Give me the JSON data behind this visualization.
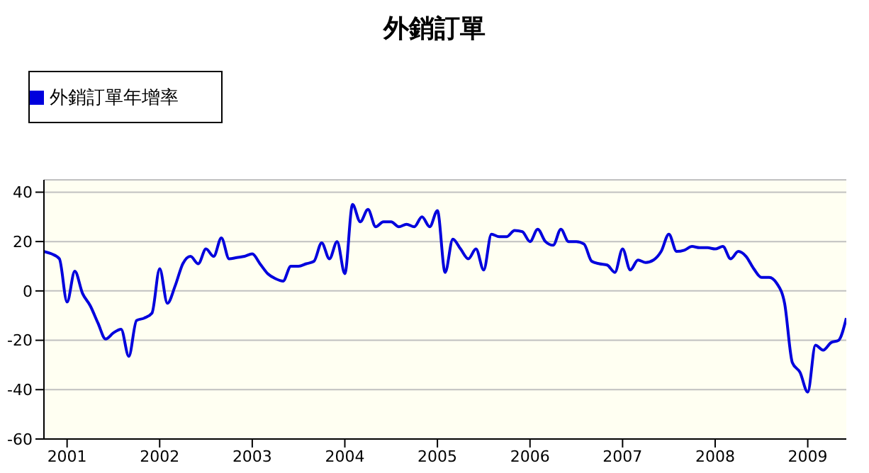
{
  "chart_data": {
    "type": "line",
    "title": "外銷訂單",
    "x": [
      "2000-10",
      "2000-11",
      "2000-12",
      "2001-01",
      "2001-02",
      "2001-03",
      "2001-04",
      "2001-05",
      "2001-06",
      "2001-07",
      "2001-08",
      "2001-09",
      "2001-10",
      "2001-11",
      "2001-12",
      "2002-01",
      "2002-02",
      "2002-03",
      "2002-04",
      "2002-05",
      "2002-06",
      "2002-07",
      "2002-08",
      "2002-09",
      "2002-10",
      "2002-11",
      "2002-12",
      "2003-01",
      "2003-02",
      "2003-03",
      "2003-04",
      "2003-05",
      "2003-06",
      "2003-07",
      "2003-08",
      "2003-09",
      "2003-10",
      "2003-11",
      "2003-12",
      "2004-01",
      "2004-02",
      "2004-03",
      "2004-04",
      "2004-05",
      "2004-06",
      "2004-07",
      "2004-08",
      "2004-09",
      "2004-10",
      "2004-11",
      "2004-12",
      "2005-01",
      "2005-02",
      "2005-03",
      "2005-04",
      "2005-05",
      "2005-06",
      "2005-07",
      "2005-08",
      "2005-09",
      "2005-10",
      "2005-11",
      "2005-12",
      "2006-01",
      "2006-02",
      "2006-03",
      "2006-04",
      "2006-05",
      "2006-06",
      "2006-07",
      "2006-08",
      "2006-09",
      "2006-10",
      "2006-11",
      "2006-12",
      "2007-01",
      "2007-02",
      "2007-03",
      "2007-04",
      "2007-05",
      "2007-06",
      "2007-07",
      "2007-08",
      "2007-09",
      "2007-10",
      "2007-11",
      "2007-12",
      "2008-01",
      "2008-02",
      "2008-03",
      "2008-04",
      "2008-05",
      "2008-06",
      "2008-07",
      "2008-08",
      "2008-09",
      "2008-10",
      "2008-11",
      "2008-12",
      "2009-01",
      "2009-02",
      "2009-03",
      "2009-04",
      "2009-05",
      "2009-06"
    ],
    "series": [
      {
        "name": "外銷訂單年增率",
        "color": "#0000dd",
        "values": [
          16,
          15,
          13,
          -4.5,
          8,
          -1,
          -6,
          -13,
          -19.5,
          -17,
          -15.5,
          -26.5,
          -12,
          -11,
          -9,
          9,
          -5,
          2,
          11,
          14,
          11,
          17,
          14,
          21.5,
          13,
          13.5,
          14,
          15,
          11,
          7,
          5,
          4,
          10,
          10,
          11,
          12,
          19.5,
          13,
          20,
          7,
          35,
          28,
          33,
          26,
          28,
          28,
          26,
          27,
          26,
          30,
          26,
          32.5,
          7.5,
          21,
          17,
          13,
          17,
          8.5,
          23,
          22,
          22,
          24.5,
          24,
          20,
          25,
          20,
          18.5,
          25,
          20,
          20,
          19,
          12,
          11,
          10.5,
          7.5,
          17,
          8.5,
          12.5,
          11.5,
          12.5,
          16,
          23,
          16,
          16.5,
          18,
          17.5,
          17.5,
          17,
          18,
          13,
          16,
          14,
          9,
          5.5,
          5.5,
          3,
          -5,
          -29,
          -33,
          -41,
          -22,
          -24,
          -21,
          -20,
          -11
        ]
      }
    ],
    "xlim": [
      "2000-10",
      "2009-06"
    ],
    "xticks": [
      "2001",
      "2002",
      "2003",
      "2004",
      "2005",
      "2006",
      "2007",
      "2008",
      "2009"
    ],
    "ylim": [
      -60,
      45
    ],
    "yticks": [
      -60,
      -40,
      -20,
      0,
      20,
      40
    ],
    "grid": "y",
    "legend": "top left"
  }
}
